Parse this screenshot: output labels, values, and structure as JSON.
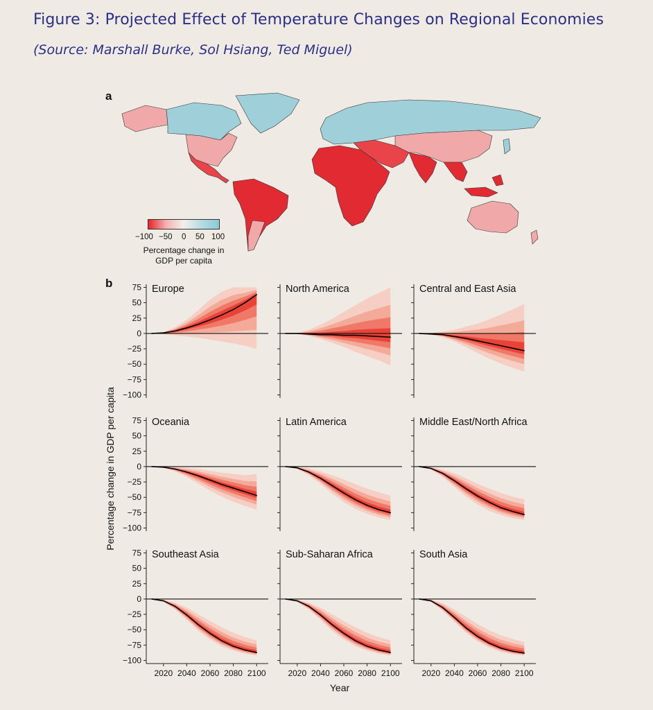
{
  "header": {
    "title": "Figure 3: Projected Effect of Temperature Changes on Regional Economies",
    "source": "(Source: Marshall Burke, Sol Hsiang, Ted Miguel)"
  },
  "panels": {
    "a": "a",
    "b": "b"
  },
  "legend": {
    "ticks": [
      "−100",
      "−50",
      "0",
      "50",
      "100"
    ],
    "label_line1": "Percentage change in",
    "label_line2": "GDP per capita"
  },
  "colors": {
    "negative_strong": "#e8232b",
    "negative_light": "#f3b1b0",
    "neutral": "#f4efea",
    "positive": "#8dc9d7",
    "ocean": "#efebe4",
    "curve": "#000000"
  },
  "chart_data": {
    "type": "line",
    "ylabel": "Percentage change in GDP per capita",
    "xlabel": "Year",
    "x": [
      2010,
      2020,
      2030,
      2040,
      2050,
      2060,
      2070,
      2080,
      2090,
      2100
    ],
    "xticks": [
      2020,
      2040,
      2060,
      2080,
      2100
    ],
    "yticks": [
      75,
      50,
      25,
      0,
      -25,
      -50,
      -75,
      -100
    ],
    "ylim": [
      -105,
      80
    ],
    "series": [
      {
        "name": "Europe",
        "values": [
          0,
          1,
          4,
          9,
          15,
          22,
          30,
          39,
          50,
          63
        ],
        "band_low": [
          0,
          -1,
          -3,
          -5,
          -7,
          -10,
          -13,
          -16,
          -20,
          -25
        ],
        "band_high": [
          0,
          2,
          10,
          22,
          38,
          55,
          68,
          75,
          75,
          75
        ]
      },
      {
        "name": "North America",
        "values": [
          0,
          0,
          -1,
          -2,
          -2,
          -3,
          -3,
          -4,
          -5,
          -6
        ],
        "band_low": [
          0,
          -1,
          -4,
          -9,
          -15,
          -22,
          -30,
          -37,
          -44,
          -52
        ],
        "band_high": [
          0,
          1,
          6,
          14,
          24,
          35,
          46,
          57,
          66,
          75
        ]
      },
      {
        "name": "Central and East Asia",
        "values": [
          0,
          -1,
          -2,
          -5,
          -8,
          -12,
          -16,
          -20,
          -24,
          -28
        ],
        "band_low": [
          0,
          -2,
          -6,
          -13,
          -22,
          -32,
          -41,
          -49,
          -56,
          -62
        ],
        "band_high": [
          0,
          1,
          3,
          6,
          11,
          16,
          23,
          31,
          39,
          48
        ]
      },
      {
        "name": "Oceania",
        "values": [
          0,
          -1,
          -4,
          -9,
          -15,
          -22,
          -29,
          -35,
          -41,
          -47
        ],
        "band_low": [
          0,
          -2,
          -8,
          -17,
          -28,
          -39,
          -49,
          -57,
          -64,
          -70
        ],
        "band_high": [
          0,
          0,
          -1,
          -2,
          -4,
          -7,
          -10,
          -12,
          -14,
          -12
        ]
      },
      {
        "name": "Latin America",
        "values": [
          0,
          -2,
          -9,
          -19,
          -31,
          -43,
          -54,
          -63,
          -70,
          -75
        ],
        "band_low": [
          0,
          -4,
          -14,
          -28,
          -44,
          -58,
          -69,
          -77,
          -83,
          -87
        ],
        "band_high": [
          0,
          -1,
          -3,
          -8,
          -14,
          -21,
          -29,
          -36,
          -42,
          -47
        ]
      },
      {
        "name": "Middle East/North Africa",
        "values": [
          0,
          -3,
          -11,
          -23,
          -36,
          -48,
          -58,
          -67,
          -73,
          -78
        ],
        "band_low": [
          0,
          -5,
          -17,
          -33,
          -49,
          -62,
          -72,
          -79,
          -84,
          -87
        ],
        "band_high": [
          0,
          -1,
          -5,
          -11,
          -19,
          -28,
          -36,
          -43,
          -49,
          -53
        ]
      },
      {
        "name": "Southeast Asia",
        "values": [
          0,
          -3,
          -12,
          -26,
          -42,
          -56,
          -68,
          -77,
          -83,
          -87
        ],
        "band_low": [
          0,
          -5,
          -17,
          -34,
          -52,
          -66,
          -77,
          -84,
          -89,
          -92
        ],
        "band_high": [
          0,
          -1,
          -6,
          -14,
          -25,
          -36,
          -46,
          -55,
          -62,
          -67
        ]
      },
      {
        "name": "Sub-Saharan Africa",
        "values": [
          0,
          -3,
          -12,
          -26,
          -42,
          -56,
          -68,
          -77,
          -83,
          -87
        ],
        "band_low": [
          0,
          -5,
          -17,
          -34,
          -52,
          -66,
          -77,
          -84,
          -89,
          -92
        ],
        "band_high": [
          0,
          -1,
          -6,
          -14,
          -25,
          -36,
          -46,
          -55,
          -62,
          -67
        ]
      },
      {
        "name": "South Asia",
        "values": [
          0,
          -3,
          -14,
          -30,
          -47,
          -61,
          -72,
          -80,
          -85,
          -88
        ],
        "band_low": [
          0,
          -5,
          -19,
          -37,
          -55,
          -69,
          -79,
          -86,
          -90,
          -92
        ],
        "band_high": [
          0,
          -1,
          -7,
          -17,
          -29,
          -41,
          -51,
          -59,
          -65,
          -70
        ]
      }
    ]
  },
  "map": {
    "regions": [
      {
        "name": "North America north",
        "class": "positive"
      },
      {
        "name": "United States",
        "class": "negative_light"
      },
      {
        "name": "Mexico and Central America",
        "class": "negative_strong"
      },
      {
        "name": "South America",
        "class": "negative_strong"
      },
      {
        "name": "Europe and Russia",
        "class": "positive"
      },
      {
        "name": "China",
        "class": "negative_light"
      },
      {
        "name": "Middle East",
        "class": "negative_strong"
      },
      {
        "name": "Africa",
        "class": "negative_strong"
      },
      {
        "name": "India",
        "class": "negative_strong"
      },
      {
        "name": "Southeast Asia",
        "class": "negative_strong"
      },
      {
        "name": "Australia",
        "class": "negative_light"
      },
      {
        "name": "Greenland",
        "class": "positive"
      }
    ]
  }
}
